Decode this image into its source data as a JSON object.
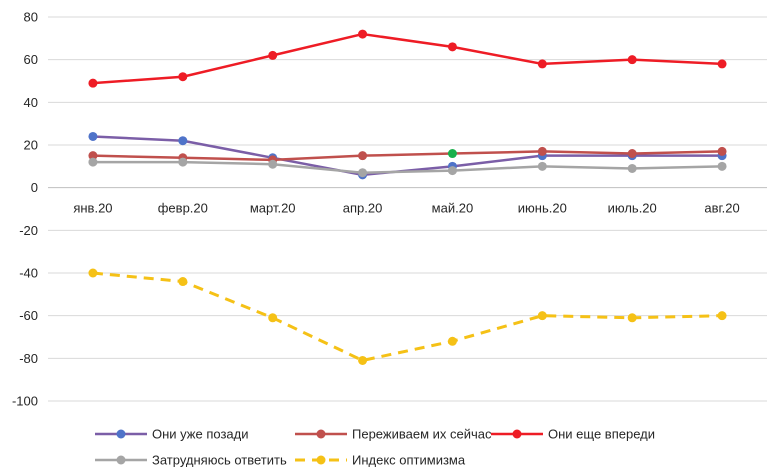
{
  "chart_data": {
    "type": "line",
    "categories": [
      "янв.20",
      "февр.20",
      "март.20",
      "апр.20",
      "май.20",
      "июнь.20",
      "июль.20",
      "авг.20"
    ],
    "ylim": [
      -100,
      80
    ],
    "yticks": [
      80,
      60,
      40,
      20,
      0,
      -20,
      -40,
      -60,
      -80,
      -100
    ],
    "grid": true,
    "legend_position": "bottom",
    "series": [
      {
        "name": "Они уже позади",
        "values": [
          24,
          22,
          14,
          6,
          10,
          15,
          15,
          15
        ],
        "color": "#7b5ea7",
        "marker_color": "#4f73c9",
        "dashed": false
      },
      {
        "name": "Переживаем их сейчас",
        "values": [
          15,
          14,
          13,
          15,
          16,
          17,
          16,
          17
        ],
        "color": "#c0504d",
        "marker_color": "#c0504d",
        "dashed": false,
        "highlight_point": {
          "index": 4,
          "color": "#1aaf4b"
        }
      },
      {
        "name": "Они еще впереди",
        "values": [
          49,
          52,
          62,
          72,
          66,
          58,
          60,
          58
        ],
        "color": "#ee1c25",
        "marker_color": "#ee1c25",
        "dashed": false
      },
      {
        "name": "Затрудняюсь ответить",
        "values": [
          12,
          12,
          11,
          7,
          8,
          10,
          9,
          10
        ],
        "color": "#a5a5a5",
        "marker_color": "#a5a5a5",
        "dashed": false
      },
      {
        "name": "Индекс оптимизма",
        "values": [
          -40,
          -44,
          -61,
          -81,
          -72,
          -60,
          -61,
          -60
        ],
        "color": "#f5c116",
        "marker_color": "#f5c116",
        "dashed": true
      }
    ]
  }
}
